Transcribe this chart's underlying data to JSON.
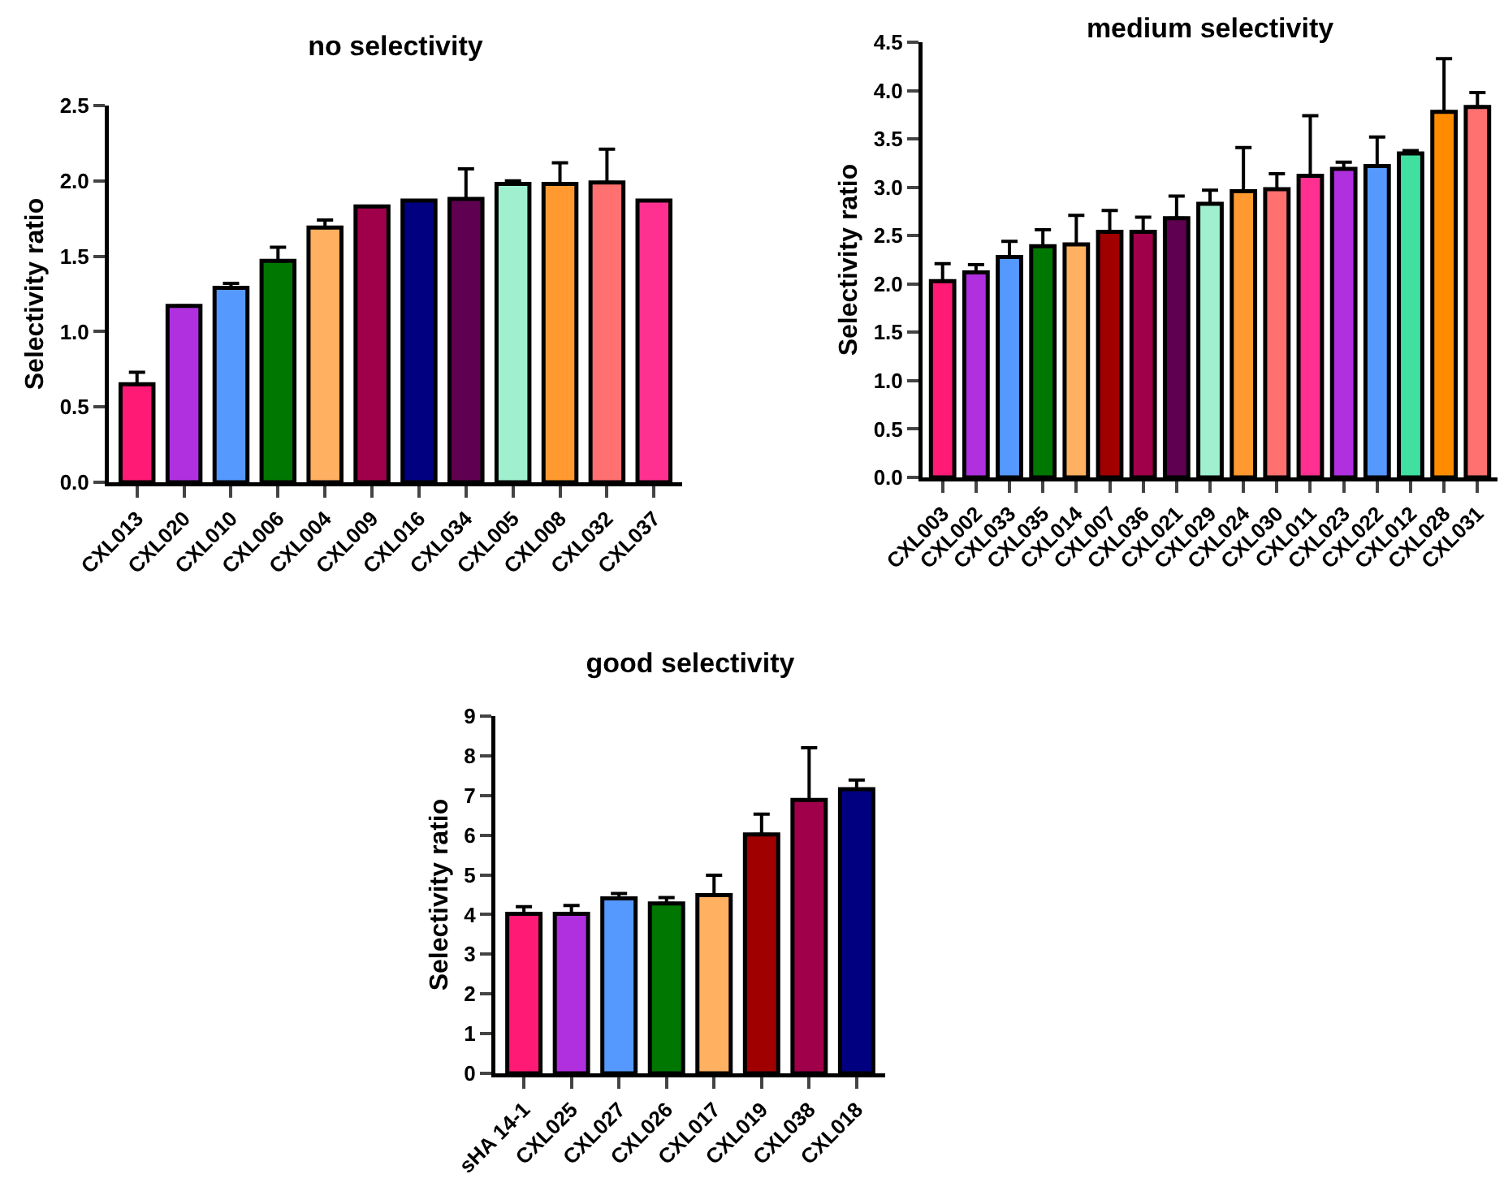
{
  "chart_data": [
    {
      "type": "bar",
      "title": "no selectivity",
      "ylabel": "Selectivity ratio",
      "categories": [
        "CXL013",
        "CXL020",
        "CXL010",
        "CXL006",
        "CXL004",
        "CXL009",
        "CXL016",
        "CXL034",
        "CXL005",
        "CXL008",
        "CXL032",
        "CXL037"
      ],
      "values": [
        0.65,
        1.17,
        1.29,
        1.47,
        1.69,
        1.83,
        1.87,
        1.88,
        1.98,
        1.98,
        1.99,
        1.87
      ],
      "errors": [
        [
          0.65,
          0.73
        ],
        null,
        [
          1.29,
          1.32
        ],
        [
          1.47,
          1.56
        ],
        [
          1.69,
          1.74
        ],
        null,
        null,
        [
          1.88,
          2.08
        ],
        [
          1.98,
          2.0
        ],
        [
          1.98,
          2.12
        ],
        [
          1.99,
          2.21
        ],
        null
      ],
      "colors": [
        "#ff1a75",
        "#b030e0",
        "#5599ff",
        "#007700",
        "#ffb060",
        "#a0004a",
        "#000080",
        "#600050",
        "#a0f0d0",
        "#ff9930",
        "#ff7070",
        "#ff3090"
      ],
      "ylim": [
        0,
        2.5
      ],
      "yticks": [
        {
          "value": 0,
          "label": "0.0"
        },
        0.5,
        {
          "value": 1,
          "label": "1.0"
        },
        1.5,
        {
          "value": 2,
          "label": "2.0"
        },
        2.5
      ],
      "grid": false
    },
    {
      "type": "bar",
      "title": "medium selectivity",
      "ylabel": "Selectivity ratio",
      "categories": [
        "CXL003",
        "CXL002",
        "CXL033",
        "CXL035",
        "CXL014",
        "CXL007",
        "CXL036",
        "CXL021",
        "CXL029",
        "CXL024",
        "CXL030",
        "CXL011",
        "CXL023",
        "CXL022",
        "CXL012",
        "CXL028",
        "CXL031"
      ],
      "values": [
        2.03,
        2.12,
        2.28,
        2.39,
        2.41,
        2.54,
        2.54,
        2.68,
        2.83,
        2.96,
        2.98,
        3.12,
        3.19,
        3.22,
        3.35,
        3.78,
        3.83
      ],
      "errors": [
        [
          2.03,
          2.21
        ],
        [
          2.12,
          2.2
        ],
        [
          2.28,
          2.44
        ],
        [
          2.39,
          2.56
        ],
        [
          2.41,
          2.71
        ],
        [
          2.54,
          2.76
        ],
        [
          2.54,
          2.69
        ],
        [
          2.68,
          2.91
        ],
        [
          2.83,
          2.97
        ],
        [
          2.96,
          3.41
        ],
        [
          2.98,
          3.14
        ],
        [
          3.12,
          3.74
        ],
        [
          3.19,
          3.26
        ],
        [
          3.22,
          3.52
        ],
        [
          3.35,
          3.38
        ],
        [
          3.78,
          4.33
        ],
        [
          3.83,
          3.98
        ]
      ],
      "colors": [
        "#ff1a75",
        "#b030e0",
        "#5599ff",
        "#007700",
        "#ffb060",
        "#a00000",
        "#a0004a",
        "#600050",
        "#a0f0d0",
        "#ff9930",
        "#ff7070",
        "#ff3090",
        "#b030e0",
        "#5599ff",
        "#40e0a0",
        "#ff8c00",
        "#ff7070"
      ],
      "ylim": [
        0,
        4.5
      ],
      "yticks": [
        {
          "value": 0,
          "label": "0.0"
        },
        0.5,
        {
          "value": 1,
          "label": "1.0"
        },
        1.5,
        {
          "value": 2,
          "label": "2.0"
        },
        2.5,
        {
          "value": 3,
          "label": "3.0"
        },
        3.5,
        {
          "value": 4,
          "label": "4.0"
        },
        4.5
      ],
      "grid": false
    },
    {
      "type": "bar",
      "title": "good selectivity",
      "ylabel": "Selectivity ratio",
      "categories": [
        "sHA 14-1",
        "CXL025",
        "CXL027",
        "CXL026",
        "CXL017",
        "CXL019",
        "CXL038",
        "CXL018"
      ],
      "values": [
        4.02,
        4.02,
        4.41,
        4.28,
        4.49,
        6.02,
        6.89,
        7.16
      ],
      "errors": [
        [
          4.02,
          4.2
        ],
        [
          4.02,
          4.23
        ],
        [
          4.41,
          4.53
        ],
        [
          4.28,
          4.43
        ],
        [
          4.49,
          4.99
        ],
        [
          6.02,
          6.53
        ],
        [
          6.89,
          8.2
        ],
        [
          7.16,
          7.39
        ]
      ],
      "colors": [
        "#ff1a75",
        "#b030e0",
        "#5599ff",
        "#007700",
        "#ffb060",
        "#a00000",
        "#a0004a",
        "#000080"
      ],
      "ylim": [
        0,
        9
      ],
      "yticks": [
        0,
        1,
        2,
        3,
        4,
        5,
        6,
        7,
        8,
        9
      ],
      "grid": false
    }
  ]
}
